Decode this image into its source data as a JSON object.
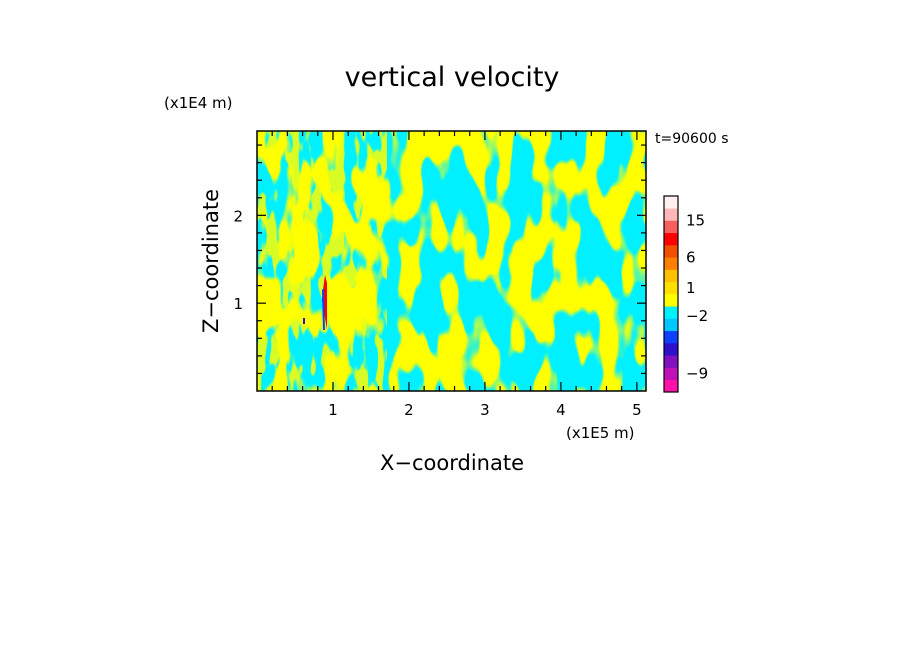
{
  "chart_data": {
    "type": "heatmap",
    "title": "vertical velocity",
    "xlabel": "X−coordinate",
    "ylabel": "Z−coordinate",
    "x_unit": "(x1E5 m)",
    "y_unit": "(x1E4 m)",
    "time_label": "t=90600 s",
    "xlim": [
      0,
      5.12
    ],
    "ylim": [
      0,
      2.96
    ],
    "x_ticks": [
      {
        "value": 1,
        "label": "1"
      },
      {
        "value": 2,
        "label": "2"
      },
      {
        "value": 3,
        "label": "3"
      },
      {
        "value": 4,
        "label": "4"
      },
      {
        "value": 5,
        "label": "5"
      }
    ],
    "y_ticks": [
      {
        "value": 1,
        "label": "1"
      },
      {
        "value": 2,
        "label": "2"
      }
    ],
    "colorbar": {
      "bins": [
        {
          "color": "#ff10a8"
        },
        {
          "color": "#c010b8"
        },
        {
          "color": "#8010c0"
        },
        {
          "color": "#3010c8"
        },
        {
          "color": "#1040ff"
        },
        {
          "color": "#00c8ff"
        },
        {
          "color": "#00f0ff"
        },
        {
          "color": "#ffff00"
        },
        {
          "color": "#ffe000"
        },
        {
          "color": "#ffc000"
        },
        {
          "color": "#ff8000"
        },
        {
          "color": "#f05000"
        },
        {
          "color": "#ff0000"
        },
        {
          "color": "#f86060"
        },
        {
          "color": "#ffb8b8"
        },
        {
          "color": "#fff0f0"
        }
      ],
      "labels": [
        {
          "text": "15",
          "bin": 14
        },
        {
          "text": "6",
          "bin": 11
        },
        {
          "text": "1",
          "bin": 8.5
        },
        {
          "text": "−2",
          "bin": 6.2
        },
        {
          "text": "−9",
          "bin": 1.5
        }
      ]
    },
    "dominant_colors": {
      "positive": "#ffff00",
      "negative": "#00f0ff"
    }
  }
}
